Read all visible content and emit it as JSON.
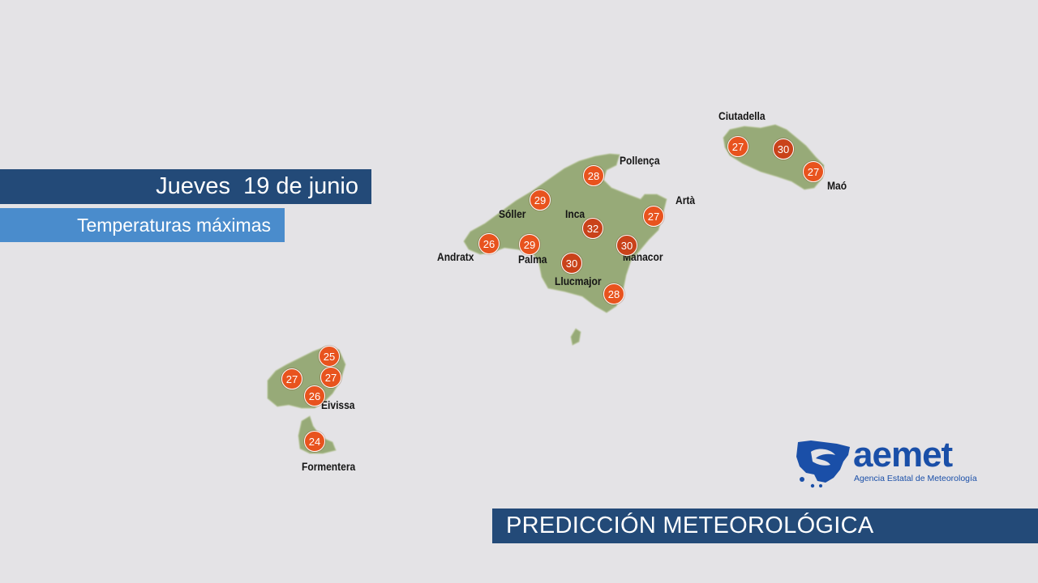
{
  "header": {
    "date": "Jueves  19 de junio",
    "subtitle": "Temperaturas máximas"
  },
  "footer": {
    "title": "PREDICCIÓN METEOROLÓGICA"
  },
  "logo": {
    "word": "aemet",
    "tagline": "Agencia Estatal de Meteorología"
  },
  "colors": {
    "background": "#e4e3e6",
    "land": "#97aa78",
    "marker": "#e8531e",
    "banner_dark": "#234a78",
    "banner_light": "#4a8ccc",
    "brand": "#1a4fa8"
  },
  "places": [
    {
      "name": "Ciutadella"
    },
    {
      "name": "Maó"
    },
    {
      "name": "Pollença"
    },
    {
      "name": "Artà"
    },
    {
      "name": "Sóller"
    },
    {
      "name": "Inca"
    },
    {
      "name": "Andratx"
    },
    {
      "name": "Palma"
    },
    {
      "name": "Manacor"
    },
    {
      "name": "Llucmajor"
    },
    {
      "name": "Eivissa"
    },
    {
      "name": "Formentera"
    }
  ],
  "temperatures": [
    {
      "value": "27"
    },
    {
      "value": "30"
    },
    {
      "value": "27"
    },
    {
      "value": "28"
    },
    {
      "value": "29"
    },
    {
      "value": "27"
    },
    {
      "value": "32"
    },
    {
      "value": "26"
    },
    {
      "value": "29"
    },
    {
      "value": "30"
    },
    {
      "value": "30"
    },
    {
      "value": "28"
    },
    {
      "value": "25"
    },
    {
      "value": "27"
    },
    {
      "value": "27"
    },
    {
      "value": "26"
    },
    {
      "value": "24"
    }
  ]
}
